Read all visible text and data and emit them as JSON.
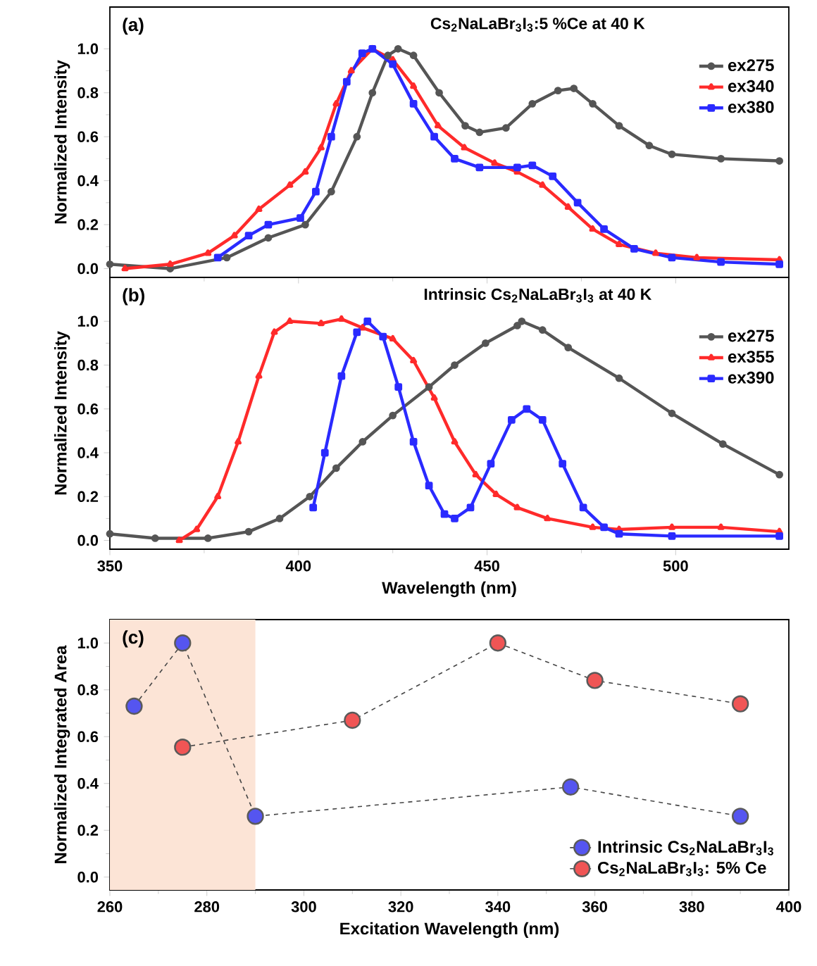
{
  "chart_data": [
    {
      "type": "line",
      "title": "Cs$_{2}$NaLaBr$_{3}$I$_{3}$:5 %Ce at 40 K",
      "ylabel": "Normalized Intensity",
      "annotations": [
        "(a)"
      ],
      "legend": "top right",
      "tick_labels": "y",
      "xlim": [
        350,
        530
      ],
      "xticks": [
        350,
        400,
        450,
        500
      ],
      "ylim": [
        -0.04,
        1.19
      ],
      "yticks": [
        {
          "value": 0,
          "label": "0.0"
        },
        {
          "value": 0.2,
          "label": "0.2"
        },
        {
          "value": 0.4,
          "label": "0.4"
        },
        {
          "value": 0.6,
          "label": "0.6"
        },
        {
          "value": 0.8,
          "label": "0.8"
        },
        {
          "value": 1,
          "label": "1.0"
        }
      ],
      "series": [
        {
          "name": "ex275",
          "color": "#555555",
          "marker": "circle",
          "x": [
            350,
            366,
            381,
            392,
            401.8,
            408.7,
            415.5,
            419.6,
            423.7,
            426.4,
            430.5,
            437.3,
            444.2,
            448,
            455,
            462,
            468.8,
            473,
            478,
            485,
            493,
            499,
            512,
            527.5
          ],
          "values": [
            0.02,
            0.0,
            0.05,
            0.14,
            0.2,
            0.35,
            0.6,
            0.8,
            0.97,
            1.0,
            0.97,
            0.8,
            0.65,
            0.62,
            0.64,
            0.75,
            0.81,
            0.82,
            0.75,
            0.65,
            0.56,
            0.52,
            0.5,
            0.49
          ]
        },
        {
          "name": "ex340",
          "color": "#ff2a2a",
          "marker": "triangle",
          "x": [
            354,
            366,
            376,
            383,
            389.5,
            397.7,
            401.8,
            406,
            410,
            414,
            419.6,
            425,
            430.5,
            437,
            444,
            452,
            458,
            464.7,
            471.5,
            478,
            485,
            494.7,
            505.6,
            527.5
          ],
          "values": [
            0.0,
            0.02,
            0.07,
            0.15,
            0.27,
            0.38,
            0.44,
            0.55,
            0.75,
            0.9,
            1.0,
            0.95,
            0.83,
            0.65,
            0.55,
            0.48,
            0.44,
            0.38,
            0.28,
            0.18,
            0.11,
            0.07,
            0.05,
            0.04
          ]
        },
        {
          "name": "ex380",
          "color": "#2a2aff",
          "marker": "square",
          "x": [
            378.6,
            386.8,
            392,
            400.5,
            404.6,
            408.7,
            412.8,
            416.9,
            419.6,
            425,
            430.5,
            436,
            441.4,
            448,
            458,
            462,
            467.4,
            474,
            481,
            489,
            499,
            512,
            527.5
          ],
          "values": [
            0.05,
            0.15,
            0.2,
            0.23,
            0.35,
            0.6,
            0.85,
            0.98,
            1.0,
            0.93,
            0.75,
            0.6,
            0.5,
            0.46,
            0.46,
            0.47,
            0.42,
            0.3,
            0.18,
            0.09,
            0.05,
            0.03,
            0.02
          ]
        }
      ]
    },
    {
      "type": "line",
      "title": "Intrinsic Cs$_{2}$NaLaBr$_{3}$I$_{3}$ at 40 K",
      "xlabel": "Wavelength (nm)",
      "ylabel": "Normalized Intensity",
      "annotations": [
        "(b)"
      ],
      "legend": "top right",
      "xlim": [
        350,
        530
      ],
      "xticks": [
        350,
        400,
        450,
        500
      ],
      "ylim": [
        -0.04,
        1.2
      ],
      "yticks": [
        {
          "value": 0,
          "label": "0.0"
        },
        {
          "value": 0.2,
          "label": "0.2"
        },
        {
          "value": 0.4,
          "label": "0.4"
        },
        {
          "value": 0.6,
          "label": "0.6"
        },
        {
          "value": 0.8,
          "label": "0.8"
        },
        {
          "value": 1,
          "label": "1.0"
        }
      ],
      "series": [
        {
          "name": "ex275",
          "color": "#555555",
          "marker": "circle",
          "x": [
            350,
            362,
            376,
            386.8,
            395,
            403,
            410,
            417,
            425,
            434.6,
            441.4,
            449.6,
            458,
            459.2,
            464.7,
            471.5,
            485,
            499,
            512.5,
            527.5
          ],
          "values": [
            0.03,
            0.01,
            0.01,
            0.04,
            0.1,
            0.2,
            0.33,
            0.45,
            0.57,
            0.7,
            0.8,
            0.9,
            0.98,
            1.0,
            0.96,
            0.88,
            0.74,
            0.58,
            0.44,
            0.3
          ]
        },
        {
          "name": "ex355",
          "color": "#ff2a2a",
          "marker": "triangle",
          "x": [
            368.4,
            373,
            378.6,
            384,
            389.5,
            393.6,
            397.7,
            406,
            411.4,
            417,
            425,
            430.5,
            436,
            441.4,
            447,
            452.4,
            458,
            466,
            478,
            485,
            499,
            512,
            527.5
          ],
          "values": [
            0.0,
            0.05,
            0.2,
            0.45,
            0.75,
            0.95,
            1.0,
            0.99,
            1.01,
            0.97,
            0.92,
            0.82,
            0.65,
            0.45,
            0.3,
            0.21,
            0.15,
            0.1,
            0.06,
            0.05,
            0.06,
            0.06,
            0.04
          ]
        },
        {
          "name": "ex390",
          "color": "#2a2aff",
          "marker": "square",
          "x": [
            403.9,
            407,
            411.4,
            415.5,
            418.3,
            422.4,
            426.5,
            430.5,
            434.6,
            438.7,
            441.4,
            445.6,
            451,
            456.5,
            460.5,
            464.7,
            470,
            475.5,
            481,
            485,
            499,
            527.5
          ],
          "values": [
            0.15,
            0.4,
            0.75,
            0.95,
            1.0,
            0.93,
            0.7,
            0.45,
            0.25,
            0.12,
            0.1,
            0.15,
            0.35,
            0.55,
            0.6,
            0.55,
            0.35,
            0.15,
            0.06,
            0.03,
            0.02,
            0.02
          ]
        }
      ]
    },
    {
      "type": "line",
      "xlabel": "Excitation Wavelength (nm)",
      "ylabel": "Normalized Integrated Area",
      "annotations": [
        "(c)"
      ],
      "legend": "bottom right",
      "marker": "circle",
      "line_style": "dashed",
      "xlim": [
        260,
        400
      ],
      "xticks": [
        260,
        280,
        300,
        320,
        340,
        360,
        380,
        400
      ],
      "ylim": [
        -0.055,
        1.1
      ],
      "yticks": [
        {
          "value": 0,
          "label": "0.0"
        },
        {
          "value": 0.2,
          "label": "0.2"
        },
        {
          "value": 0.4,
          "label": "0.4"
        },
        {
          "value": 0.6,
          "label": "0.6"
        },
        {
          "value": 0.8,
          "label": "0.8"
        },
        {
          "value": 1,
          "label": "1.0"
        }
      ],
      "bands": [
        {
          "axis": "x",
          "from": 260,
          "to": 290,
          "color": "#fce4d6"
        }
      ],
      "series": [
        {
          "name": "Intrinsic Cs$_{2}$NaLaBr$_{3}$I$_{3}$",
          "color": "#5555f0",
          "x": [
            265,
            275,
            290,
            355,
            390
          ],
          "values": [
            0.73,
            1.0,
            0.26,
            0.385,
            0.26
          ]
        },
        {
          "name": "Cs$_{2}$NaLaBr$_{3}$I$_{3}$: 5% Ce",
          "color": "#f05555",
          "x": [
            275,
            310,
            340,
            360,
            390
          ],
          "values": [
            0.555,
            0.67,
            1.0,
            0.84,
            0.74
          ]
        }
      ]
    }
  ]
}
